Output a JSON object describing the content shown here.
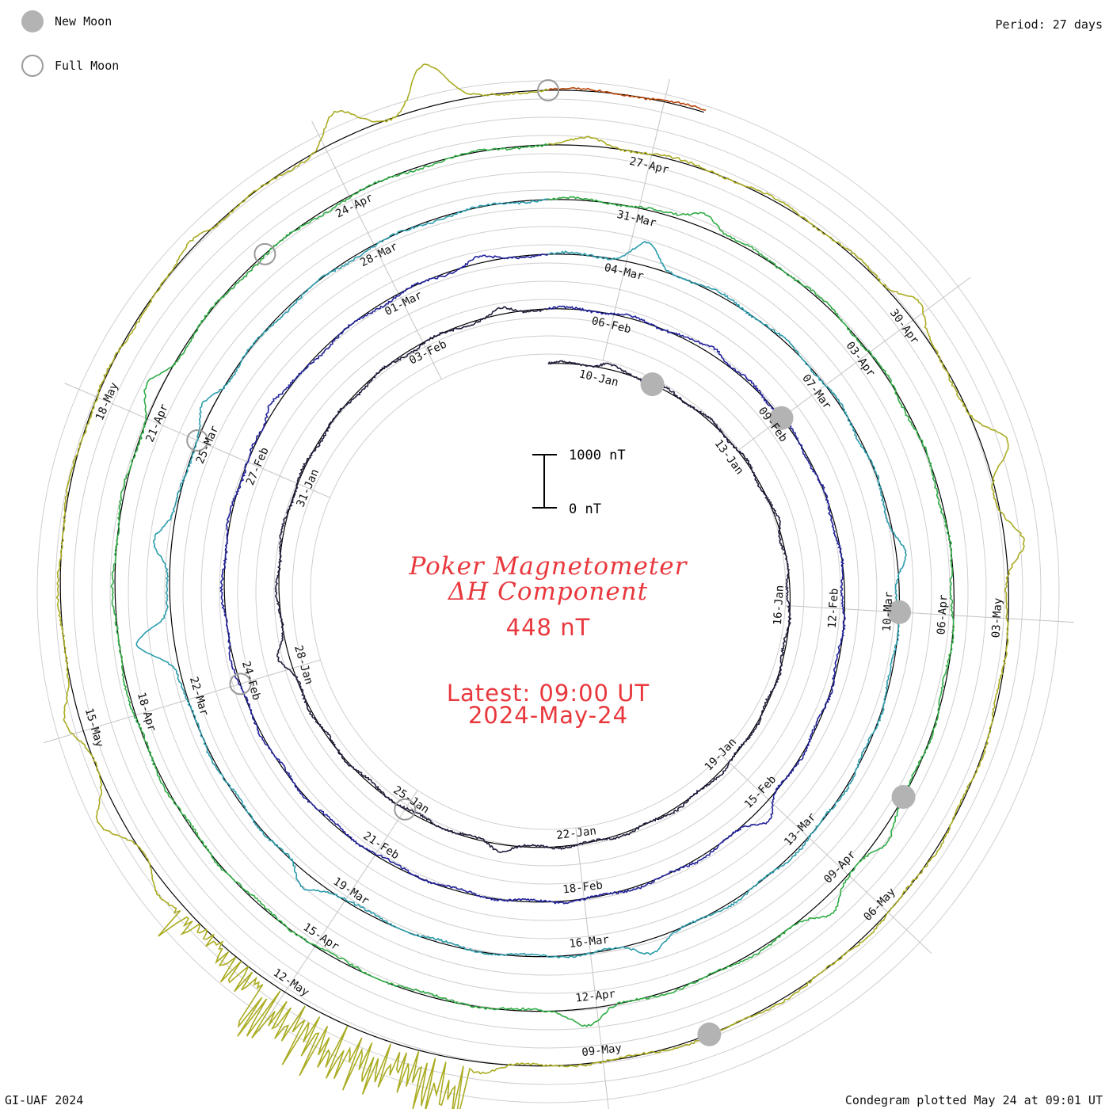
{
  "legend": {
    "new_moon_label": "New Moon",
    "full_moon_label": "Full Moon"
  },
  "period_label": "Period: 27 days",
  "footer": {
    "left": "GI-UAF 2024",
    "right": "Condegram plotted May 24 at 09:01 UT"
  },
  "center": {
    "title_line1": "Poker Magnetometer",
    "title_line2": "ΔH Component",
    "value": "448 nT",
    "latest_line1": "Latest: 09:00 UT",
    "latest_line2": "2024-May-24"
  },
  "scale_bar": {
    "top_label": "1000 nT",
    "bottom_label": "0 nT"
  },
  "chart_data": {
    "type": "line",
    "title": "Poker Magnetometer ΔH Component",
    "layout": "polar spiral condegram, one ring per 27-day rotation, clockwise from top",
    "period_days": 27,
    "start_date": "2024-01-09",
    "latest": "2024-05-24 09:00 UT",
    "latest_value_nT": 448,
    "scale_nT": [
      0,
      1000
    ],
    "tick_labels": [
      [
        "10-Jan",
        "13-Jan",
        "16-Jan",
        "19-Jan",
        "22-Jan",
        "25-Jan",
        "28-Jan",
        "31-Jan",
        "03-Feb"
      ],
      [
        "06-Feb",
        "09-Feb",
        "12-Feb",
        "15-Feb",
        "18-Feb",
        "21-Feb",
        "24-Feb",
        "27-Feb",
        "01-Mar"
      ],
      [
        "04-Mar",
        "07-Mar",
        "10-Mar",
        "13-Mar",
        "16-Mar",
        "19-Mar",
        "22-Mar",
        "25-Mar",
        "28-Mar"
      ],
      [
        "31-Mar",
        "03-Apr",
        "06-Apr",
        "09-Apr",
        "12-Apr",
        "15-Apr",
        "18-Apr",
        "21-Apr",
        "24-Apr"
      ],
      [
        "27-Apr",
        "30-Apr",
        "03-May",
        "06-May",
        "09-May",
        "12-May",
        "15-May",
        "18-May"
      ]
    ],
    "series": {
      "baseline_nT": 120,
      "amplitude_notes_nT": "quiet variation about 30-80 nT, substorms to several hundred nT, storm of 10-11 May exceeding 1500 nT",
      "events": [
        {
          "day": 1.1,
          "nT": 60
        },
        {
          "day": 5.5,
          "nT": 60
        },
        {
          "day": 14.3,
          "nT": 130
        },
        {
          "day": 19.2,
          "nT": 160
        },
        {
          "day": 26.3,
          "nT": 100
        },
        {
          "day": 29.6,
          "nT": 120
        },
        {
          "day": 37.2,
          "nT": 230
        },
        {
          "day": 49.8,
          "nT": 160
        },
        {
          "day": 53.1,
          "nT": 120
        },
        {
          "day": 55.2,
          "nT": 400
        },
        {
          "day": 60.3,
          "nT": 180
        },
        {
          "day": 66.3,
          "nT": 220
        },
        {
          "day": 70.5,
          "nT": 280
        },
        {
          "day": 73.7,
          "nT": 700
        },
        {
          "day": 74.8,
          "nT": 350
        },
        {
          "day": 76.4,
          "nT": 180
        },
        {
          "day": 82.7,
          "nT": 250
        },
        {
          "day": 90.5,
          "nT": 180
        },
        {
          "day": 91.4,
          "nT": 260
        },
        {
          "day": 94.1,
          "nT": 300
        },
        {
          "day": 103.3,
          "nT": 250
        },
        {
          "day": 108.4,
          "nT": 130
        },
        {
          "day": 111.9,
          "nT": 320
        },
        {
          "day": 113.4,
          "nT": 500
        },
        {
          "day": 114.3,
          "nT": 350
        },
        {
          "day": 122.1,
          "nT": 200
        },
        {
          "day": 125.4,
          "nT": 220
        },
        {
          "day": 126.2,
          "nT": 380
        },
        {
          "day": 127.1,
          "nT": 250
        },
        {
          "day": 131.6,
          "nT": 150
        },
        {
          "day": 133.2,
          "nT": 500
        },
        {
          "day": 134.0,
          "nT": 800
        },
        {
          "day": 137.6,
          "nT": 350
        },
        {
          "day": 139.4,
          "nT": 300
        },
        {
          "day": 143.6,
          "nT": 650
        },
        {
          "day": 145.2,
          "nT": 200
        }
      ]
    },
    "moon_phases": {
      "new_moon": [
        "2024-01-11",
        "2024-02-09",
        "2024-03-10",
        "2024-04-08",
        "2024-05-08"
      ],
      "full_moon": [
        "2024-01-25",
        "2024-02-24",
        "2024-03-25",
        "2024-04-23",
        "2024-05-23"
      ]
    },
    "colors": [
      "#1e1e3c",
      "#22229c",
      "#2c9cac",
      "#30ac46",
      "#aaac22",
      "#b8460a",
      "#c01018"
    ]
  }
}
